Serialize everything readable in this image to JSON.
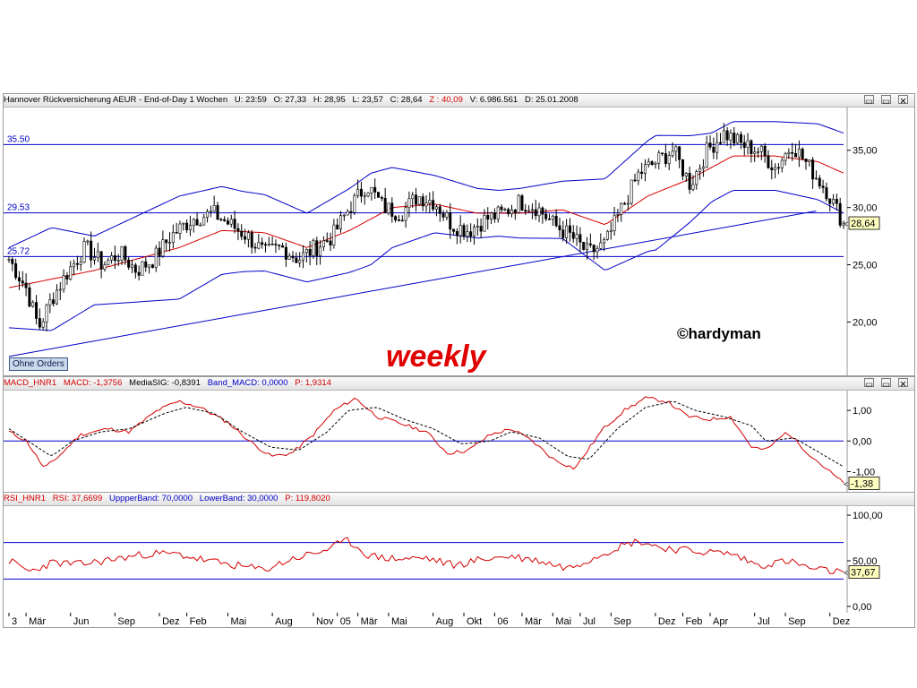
{
  "price_header": {
    "title": "Hannover Rückversicherung AEUR - End-of-Day 1 Wochen",
    "u": "U: 23:59",
    "o": "O: 27,33",
    "h": "H: 28,95",
    "l": "L: 23,57",
    "c": "C: 28,64",
    "z": "Z : 40,09",
    "v": "V: 6.986.561",
    "d": "D: 25.01.2008"
  },
  "macd_header": {
    "name": "MACD_HNR1",
    "macd": "MACD: -1,3756",
    "signal": "MediaSIG: -0,8391",
    "band": "Band_MACD: 0,0000",
    "p": "P: 1,9314"
  },
  "rsi_header": {
    "name": "RSI_HNR1",
    "rsi": "RSI: 37,6699",
    "upper": "UppperBand: 70,0000",
    "lower": "LowerBand: 30,0000",
    "p": "P: 119,8020"
  },
  "annotations": {
    "watermark": "weekly",
    "author": "©hardyman",
    "button": "Ohne Orders"
  },
  "window_buttons": [
    "▭",
    "▭",
    "✕"
  ],
  "colors": {
    "price_bar": "#000000",
    "bollinger": "#0000c8",
    "moving_average": "#d40000",
    "levels": "#0000c8",
    "macd_line": "#d40000",
    "signal_line": "#000000",
    "rsi_line": "#d40000",
    "watermark": "#e00000",
    "value_box": "#ffffc0"
  },
  "chart_data": [
    {
      "type": "candlestick",
      "title": "Hannover Rückversicherung AEUR - End-of-Day 1 Wochen",
      "ylim": [
        15.5,
        38.5
      ],
      "yticks": [
        {
          "v": 20,
          "label": "20,00"
        },
        {
          "v": 25,
          "label": "25,00"
        },
        {
          "v": 30,
          "label": "30,00"
        },
        {
          "v": 35,
          "label": "35,00"
        }
      ],
      "horizontal_levels": [
        {
          "value": 35.5,
          "label": "35.50"
        },
        {
          "value": 29.53,
          "label": "29.53"
        },
        {
          "value": 25.72,
          "label": "25.72"
        }
      ],
      "trendline": [
        [
          0,
          17.0
        ],
        [
          95,
          29.7
        ]
      ],
      "last_value_label": "28,64",
      "last_value": 28.64,
      "close_anchors": [
        [
          0,
          25.5
        ],
        [
          4,
          23.0
        ],
        [
          7,
          19.5
        ],
        [
          10,
          22.0
        ],
        [
          14,
          24.5
        ],
        [
          18,
          26.5
        ],
        [
          22,
          25.0
        ],
        [
          26,
          26.0
        ],
        [
          30,
          24.5
        ],
        [
          34,
          25.5
        ],
        [
          38,
          27.5
        ],
        [
          43,
          29.0
        ],
        [
          48,
          29.5
        ],
        [
          52,
          28.5
        ],
        [
          56,
          27.5
        ],
        [
          60,
          26.0
        ],
        [
          64,
          26.5
        ],
        [
          68,
          25.5
        ],
        [
          72,
          26.5
        ],
        [
          76,
          27.5
        ],
        [
          80,
          30.0
        ],
        [
          84,
          32.0
        ],
        [
          88,
          30.0
        ],
        [
          92,
          29.5
        ],
        [
          96,
          31.0
        ],
        [
          100,
          30.5
        ],
        [
          104,
          28.5
        ],
        [
          108,
          28.0
        ],
        [
          112,
          29.0
        ],
        [
          116,
          29.5
        ],
        [
          120,
          30.5
        ],
        [
          124,
          30.0
        ],
        [
          128,
          28.5
        ],
        [
          132,
          27.5
        ],
        [
          136,
          26.0
        ],
        [
          140,
          26.8
        ],
        [
          144,
          30.0
        ],
        [
          148,
          33.0
        ],
        [
          152,
          34.0
        ],
        [
          156,
          35.0
        ],
        [
          160,
          32.0
        ],
        [
          164,
          35.0
        ],
        [
          168,
          36.5
        ],
        [
          172,
          35.5
        ],
        [
          176,
          35.0
        ],
        [
          180,
          33.5
        ],
        [
          184,
          35.5
        ],
        [
          188,
          33.5
        ],
        [
          192,
          31.5
        ],
        [
          196,
          28.64
        ]
      ],
      "ma_anchors": [
        [
          0,
          23.0
        ],
        [
          20,
          24.5
        ],
        [
          40,
          26.5
        ],
        [
          50,
          28.0
        ],
        [
          60,
          27.8
        ],
        [
          70,
          26.5
        ],
        [
          80,
          28.0
        ],
        [
          90,
          30.0
        ],
        [
          100,
          30.3
        ],
        [
          110,
          29.5
        ],
        [
          120,
          29.5
        ],
        [
          130,
          29.8
        ],
        [
          140,
          28.5
        ],
        [
          150,
          31.0
        ],
        [
          160,
          32.5
        ],
        [
          170,
          34.5
        ],
        [
          180,
          34.5
        ],
        [
          190,
          34.0
        ],
        [
          196,
          33.0
        ]
      ],
      "bb_width_anchors": [
        [
          0,
          3.5
        ],
        [
          10,
          4.5
        ],
        [
          20,
          3.0
        ],
        [
          40,
          4.5
        ],
        [
          55,
          3.5
        ],
        [
          70,
          3.0
        ],
        [
          85,
          4.0
        ],
        [
          100,
          2.5
        ],
        [
          115,
          2.0
        ],
        [
          130,
          2.5
        ],
        [
          140,
          4.0
        ],
        [
          152,
          5.0
        ],
        [
          165,
          3.0
        ],
        [
          180,
          3.0
        ],
        [
          196,
          3.5
        ]
      ],
      "x_months": [
        {
          "label": "3",
          "i": 0
        },
        {
          "label": "Mär",
          "i": 5
        },
        {
          "label": "Jun",
          "i": 18
        },
        {
          "label": "Sep",
          "i": 31
        },
        {
          "label": "Dez",
          "i": 44
        },
        {
          "label": "Feb",
          "i": 52
        },
        {
          "label": "Mai",
          "i": 64
        },
        {
          "label": "Aug",
          "i": 77
        },
        {
          "label": "Nov",
          "i": 89
        },
        {
          "label": "05",
          "i": 96
        },
        {
          "label": "Mär",
          "i": 102
        },
        {
          "label": "Mai",
          "i": 111
        },
        {
          "label": "Aug",
          "i": 124
        },
        {
          "label": "Okt",
          "i": 133
        },
        {
          "label": "06",
          "i": 142
        },
        {
          "label": "Mär",
          "i": 150
        },
        {
          "label": "Mai",
          "i": 159
        },
        {
          "label": "Jul",
          "i": 167
        },
        {
          "label": "Sep",
          "i": 176
        },
        {
          "label": "Dez",
          "i": 189
        },
        {
          "label": "Feb",
          "i": 197
        },
        {
          "label": "Apr",
          "i": 205
        },
        {
          "label": "Jul",
          "i": 218
        },
        {
          "label": "Sep",
          "i": 227
        },
        {
          "label": "Dez",
          "i": 240
        }
      ]
    },
    {
      "type": "line",
      "title": "MACD_HNR1",
      "ylim": [
        -1.6,
        1.5
      ],
      "yticks": [
        {
          "v": 1,
          "label": "1,00"
        },
        {
          "v": 0,
          "label": "0,00"
        },
        {
          "v": -1,
          "label": "-1,00"
        }
      ],
      "zero_line": 0,
      "last_value_label": "-1,38",
      "series": [
        {
          "name": "MACD",
          "anchors": [
            [
              0,
              0.3
            ],
            [
              5,
              0.0
            ],
            [
              10,
              -0.9
            ],
            [
              15,
              -0.4
            ],
            [
              20,
              0.2
            ],
            [
              28,
              0.4
            ],
            [
              34,
              0.3
            ],
            [
              42,
              1.0
            ],
            [
              48,
              1.3
            ],
            [
              54,
              1.1
            ],
            [
              62,
              0.6
            ],
            [
              68,
              0.0
            ],
            [
              74,
              -0.5
            ],
            [
              80,
              -0.4
            ],
            [
              86,
              0.2
            ],
            [
              92,
              1.0
            ],
            [
              98,
              1.4
            ],
            [
              104,
              0.8
            ],
            [
              110,
              0.6
            ],
            [
              118,
              0.3
            ],
            [
              124,
              -0.4
            ],
            [
              130,
              -0.3
            ],
            [
              136,
              0.2
            ],
            [
              142,
              0.4
            ],
            [
              148,
              0.0
            ],
            [
              154,
              -0.6
            ],
            [
              160,
              -0.9
            ],
            [
              168,
              0.4
            ],
            [
              174,
              1.0
            ],
            [
              180,
              1.4
            ],
            [
              186,
              1.3
            ],
            [
              192,
              0.8
            ],
            [
              198,
              0.7
            ],
            [
              204,
              0.8
            ],
            [
              210,
              -0.2
            ],
            [
              214,
              -0.3
            ],
            [
              220,
              0.3
            ],
            [
              226,
              -0.4
            ],
            [
              230,
              -0.8
            ],
            [
              236,
              -1.38
            ]
          ]
        },
        {
          "name": "MediaSIG",
          "anchors": [
            [
              0,
              0.4
            ],
            [
              8,
              -0.2
            ],
            [
              12,
              -0.5
            ],
            [
              18,
              0.0
            ],
            [
              26,
              0.3
            ],
            [
              34,
              0.4
            ],
            [
              44,
              0.9
            ],
            [
              50,
              1.1
            ],
            [
              58,
              0.9
            ],
            [
              66,
              0.3
            ],
            [
              74,
              -0.2
            ],
            [
              82,
              -0.3
            ],
            [
              90,
              0.3
            ],
            [
              96,
              1.0
            ],
            [
              104,
              1.1
            ],
            [
              112,
              0.7
            ],
            [
              120,
              0.4
            ],
            [
              128,
              -0.1
            ],
            [
              136,
              0.0
            ],
            [
              142,
              0.3
            ],
            [
              150,
              0.1
            ],
            [
              158,
              -0.5
            ],
            [
              164,
              -0.6
            ],
            [
              172,
              0.4
            ],
            [
              180,
              1.1
            ],
            [
              188,
              1.3
            ],
            [
              194,
              1.0
            ],
            [
              202,
              0.8
            ],
            [
              210,
              0.5
            ],
            [
              214,
              0.0
            ],
            [
              222,
              0.1
            ],
            [
              228,
              -0.3
            ],
            [
              236,
              -0.84
            ]
          ]
        }
      ]
    },
    {
      "type": "line",
      "title": "RSI_HNR1",
      "ylim": [
        -5,
        105
      ],
      "yticks": [
        {
          "v": 100,
          "label": "100,00"
        },
        {
          "v": 50,
          "label": "50,00"
        },
        {
          "v": 0,
          "label": "0,00"
        }
      ],
      "bands": [
        70,
        30
      ],
      "last_value_label": "37,67",
      "series": [
        {
          "name": "RSI",
          "anchors": [
            [
              0,
              50
            ],
            [
              6,
              38
            ],
            [
              12,
              48
            ],
            [
              20,
              46
            ],
            [
              30,
              52
            ],
            [
              40,
              58
            ],
            [
              48,
              57
            ],
            [
              56,
              50
            ],
            [
              64,
              45
            ],
            [
              72,
              40
            ],
            [
              80,
              52
            ],
            [
              88,
              60
            ],
            [
              96,
              72
            ],
            [
              102,
              55
            ],
            [
              110,
              52
            ],
            [
              118,
              53
            ],
            [
              126,
              45
            ],
            [
              134,
              52
            ],
            [
              142,
              55
            ],
            [
              150,
              50
            ],
            [
              158,
              42
            ],
            [
              166,
              55
            ],
            [
              172,
              65
            ],
            [
              178,
              72
            ],
            [
              184,
              65
            ],
            [
              190,
              62
            ],
            [
              196,
              60
            ],
            [
              204,
              58
            ],
            [
              212,
              45
            ],
            [
              220,
              50
            ],
            [
              228,
              40
            ],
            [
              236,
              37.67
            ]
          ]
        }
      ]
    }
  ]
}
